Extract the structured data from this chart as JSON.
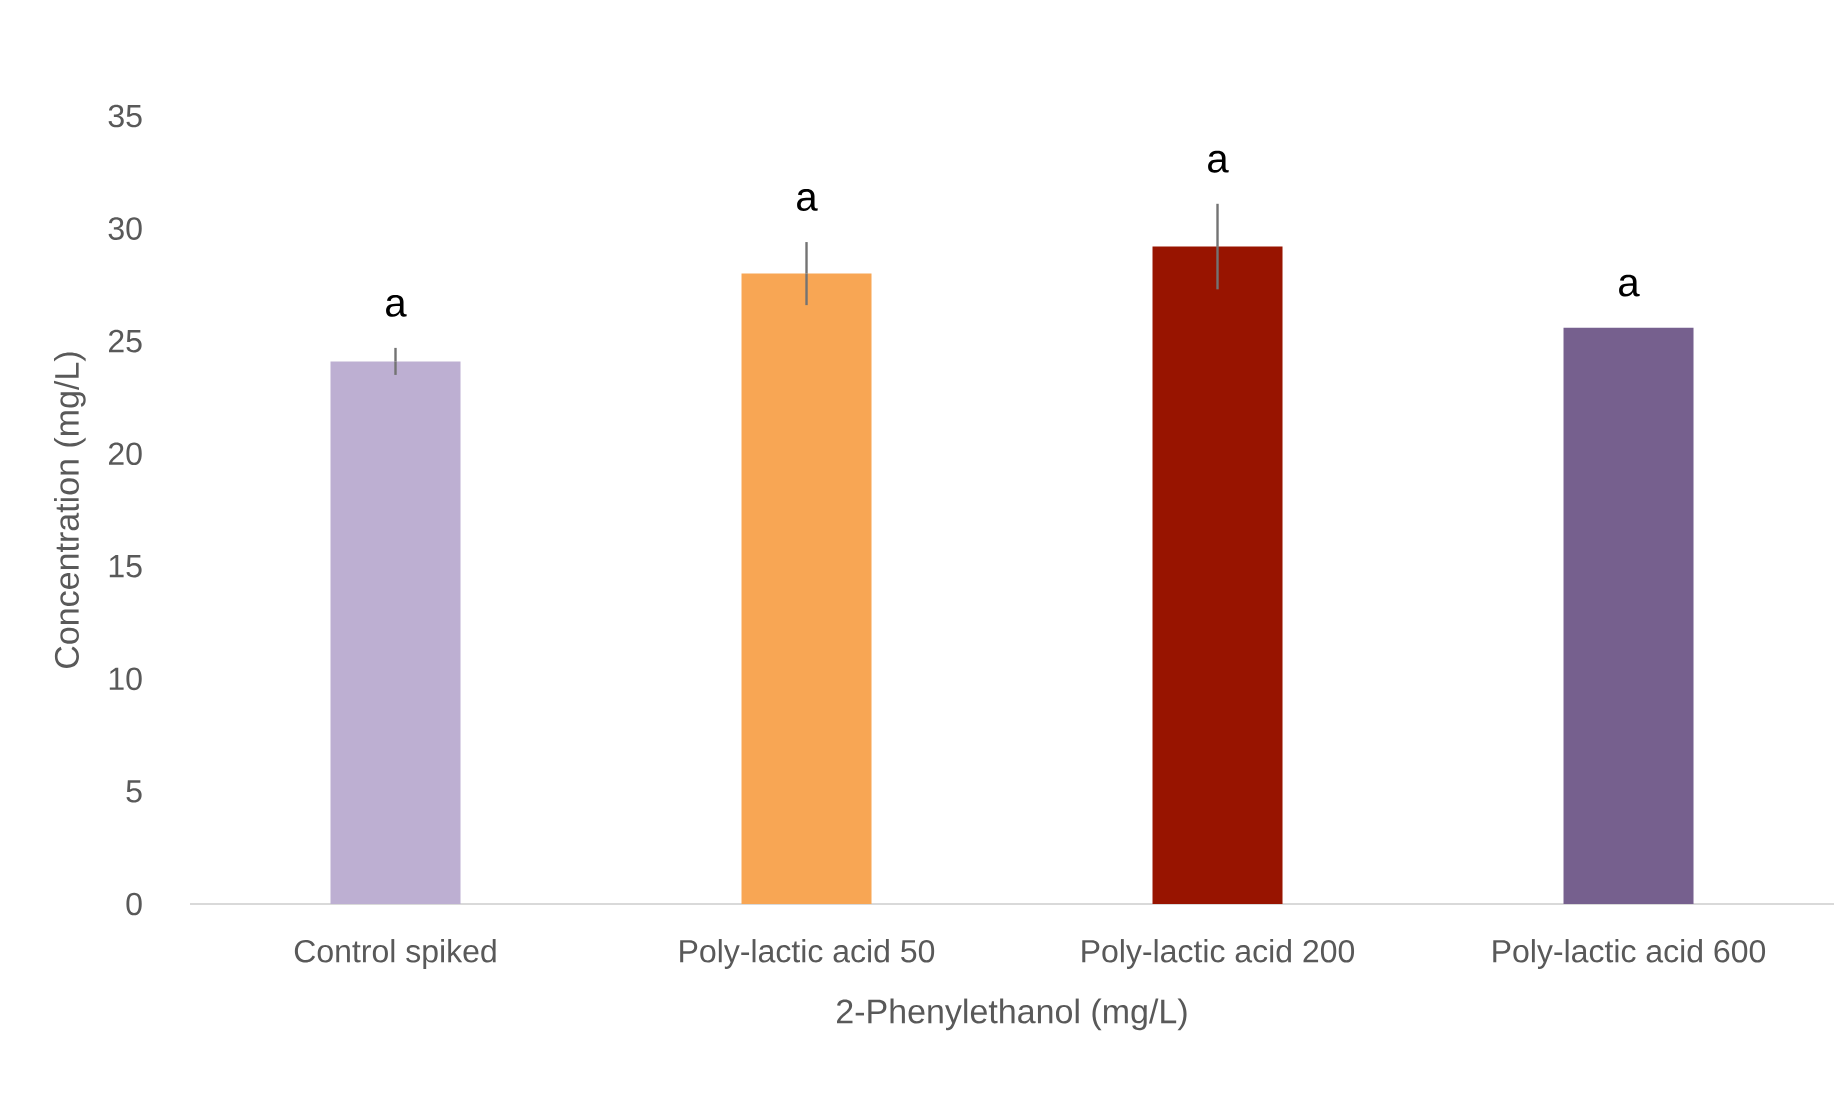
{
  "chart_data": {
    "type": "bar",
    "xlabel": "2-Phenylethanol (mg/L)",
    "ylabel": "Concentration (mg/L)",
    "categories": [
      "Control spiked",
      "Poly-lactic acid 50",
      "Poly-lactic acid 200",
      "Poly-lactic acid 600"
    ],
    "values": [
      24.1,
      28.0,
      29.2,
      25.6
    ],
    "errors": [
      0.6,
      1.4,
      1.9,
      null
    ],
    "colors": [
      "#bdafd2",
      "#f8a654",
      "#981400",
      "#76608e"
    ],
    "ylim": [
      0,
      35
    ],
    "yticks": [
      0,
      5,
      10,
      15,
      20,
      25,
      30,
      35
    ],
    "grid": false,
    "annotations": [
      {
        "text": "a",
        "x": "Control spiked",
        "y": 24.7
      },
      {
        "text": "a",
        "x": "Poly-lactic acid 50",
        "y": 29.4
      },
      {
        "text": "a",
        "x": "Poly-lactic acid 200",
        "y": 31.1
      },
      {
        "text": "a",
        "x": "Poly-lactic acid 600",
        "y": 25.6
      }
    ]
  }
}
